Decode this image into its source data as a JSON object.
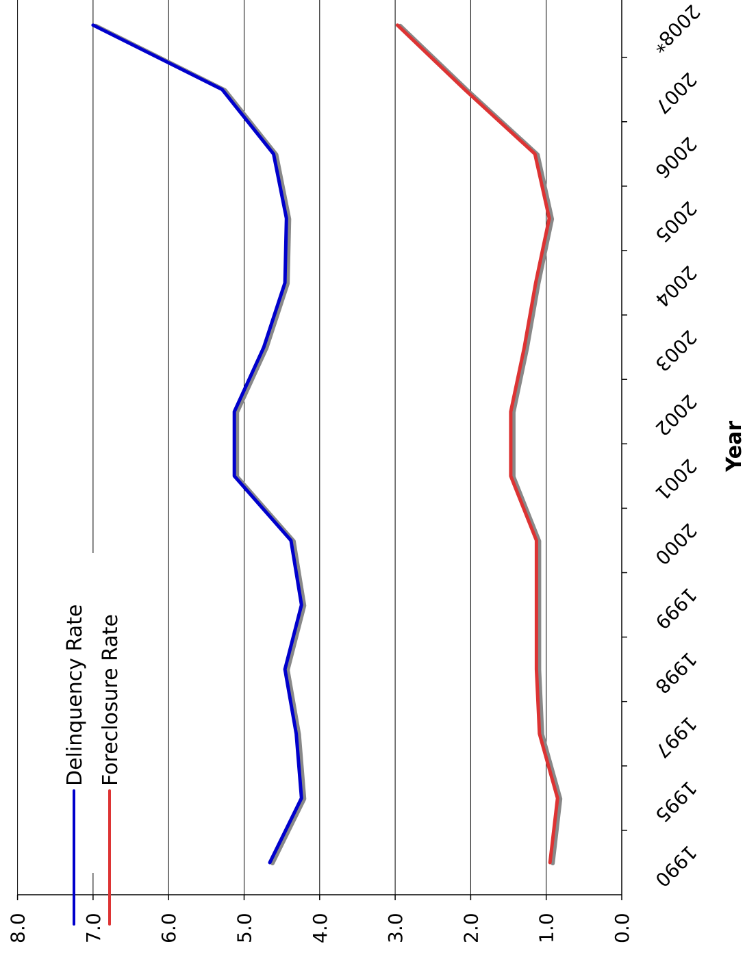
{
  "chart_data": {
    "type": "line",
    "orientation": "rotated-90-clockwise",
    "xlabel": "Year",
    "ylabel": "",
    "categories": [
      "1990",
      "1995",
      "1997",
      "1998",
      "1999",
      "2000",
      "2001",
      "2002",
      "2003",
      "2004",
      "2005",
      "2006",
      "2007",
      "2008*"
    ],
    "ylim": [
      0,
      8
    ],
    "yticks": [
      "0.0",
      "1.0",
      "2.0",
      "3.0",
      "4.0",
      "5.0",
      "6.0",
      "7.0",
      "8.0"
    ],
    "grid": true,
    "legend_position": "top-left",
    "series": [
      {
        "name": "Delinquency Rate",
        "color": "#0000cc",
        "values": [
          4.66,
          4.24,
          4.31,
          4.46,
          4.24,
          4.38,
          5.13,
          5.13,
          4.74,
          4.46,
          4.44,
          4.61,
          5.29,
          7.0
        ]
      },
      {
        "name": "Foreclosure Rate",
        "color": "#dd3333",
        "values": [
          0.95,
          0.85,
          1.09,
          1.13,
          1.13,
          1.13,
          1.47,
          1.47,
          1.29,
          1.14,
          0.96,
          1.15,
          2.08,
          2.97
        ]
      }
    ]
  }
}
